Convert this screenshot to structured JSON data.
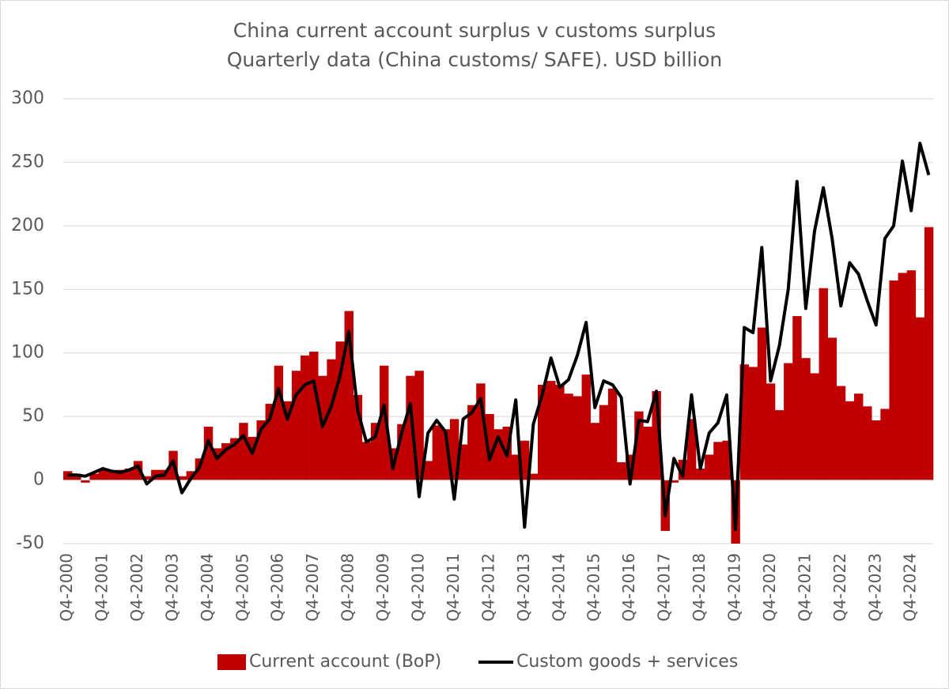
{
  "chart_data": {
    "type": "bar",
    "title": "China current account surplus v customs surplus",
    "subtitle": "Quarterly data (China customs/ SAFE). USD billion",
    "categories": [
      "Q4-2000",
      null,
      null,
      null,
      "Q4-2001",
      null,
      null,
      null,
      "Q4-2002",
      null,
      null,
      null,
      "Q4-2003",
      null,
      null,
      null,
      "Q4-2004",
      null,
      null,
      null,
      "Q4-2005",
      null,
      null,
      null,
      "Q4-2006",
      null,
      null,
      null,
      "Q4-2007",
      null,
      null,
      null,
      "Q4-2008",
      null,
      null,
      null,
      "Q4-2009",
      null,
      null,
      null,
      "Q4-2010",
      null,
      null,
      null,
      "Q4-2011",
      null,
      null,
      null,
      "Q4-2012",
      null,
      null,
      null,
      "Q4-2013",
      null,
      null,
      null,
      "Q4-2014",
      null,
      null,
      null,
      "Q4-2015",
      null,
      null,
      null,
      "Q4-2016",
      null,
      null,
      null,
      "Q4-2017",
      null,
      null,
      null,
      "Q4-2018",
      null,
      null,
      null,
      "Q4-2019",
      null,
      null,
      null,
      "Q4-2020",
      null,
      null,
      null,
      "Q4-2021",
      null,
      null,
      null,
      "Q4-2022",
      null,
      null,
      null,
      "Q4-2023",
      null,
      null,
      null,
      "Q4-2024",
      null,
      null
    ],
    "series": [
      {
        "name": "Current account (BoP)",
        "type": "bar",
        "color": "#c00000",
        "values": [
          7,
          5,
          -2,
          5,
          8,
          7,
          8,
          9,
          15,
          3,
          8,
          8,
          23,
          3,
          7,
          17,
          42,
          25,
          29,
          33,
          45,
          34,
          47,
          60,
          90,
          62,
          86,
          98,
          101,
          82,
          95,
          109,
          133,
          67,
          30,
          45,
          90,
          25,
          44,
          82,
          86,
          15,
          43,
          40,
          48,
          28,
          59,
          76,
          52,
          40,
          42,
          20,
          31,
          5,
          75,
          78,
          75,
          68,
          66,
          83,
          45,
          59,
          72,
          14,
          20,
          54,
          42,
          70,
          -40,
          -2,
          16,
          48,
          9,
          20,
          30,
          31,
          -50,
          91,
          89,
          120,
          76,
          55,
          92,
          129,
          96,
          84,
          151,
          112,
          74,
          62,
          68,
          58,
          47,
          56,
          157,
          163,
          165,
          128,
          199
        ]
      },
      {
        "name": "Custom goods + services",
        "type": "line",
        "color": "#000000",
        "values": [
          4,
          4,
          3,
          6,
          9,
          7,
          6,
          8,
          11,
          -3,
          3,
          4,
          15,
          -10,
          1,
          10,
          31,
          17,
          24,
          28,
          35,
          21,
          40,
          48,
          72,
          48,
          67,
          75,
          78,
          42,
          58,
          82,
          117,
          55,
          30,
          34,
          59,
          9,
          37,
          60,
          -13,
          37,
          47,
          38,
          -15,
          48,
          53,
          64,
          16,
          34,
          19,
          63,
          -37,
          44,
          67,
          96,
          73,
          79,
          98,
          124,
          57,
          78,
          75,
          65,
          -3,
          47,
          46,
          70,
          -28,
          17,
          3,
          67,
          9,
          37,
          45,
          67,
          -39,
          120,
          116,
          183,
          78,
          106,
          150,
          235,
          135,
          196,
          230,
          190,
          137,
          171,
          162,
          141,
          122,
          190,
          200,
          251,
          212,
          265,
          240
        ]
      }
    ],
    "ylim": [
      -50,
      300
    ],
    "yticks": [
      -50,
      0,
      50,
      100,
      150,
      200,
      250,
      300
    ],
    "grid": true
  }
}
